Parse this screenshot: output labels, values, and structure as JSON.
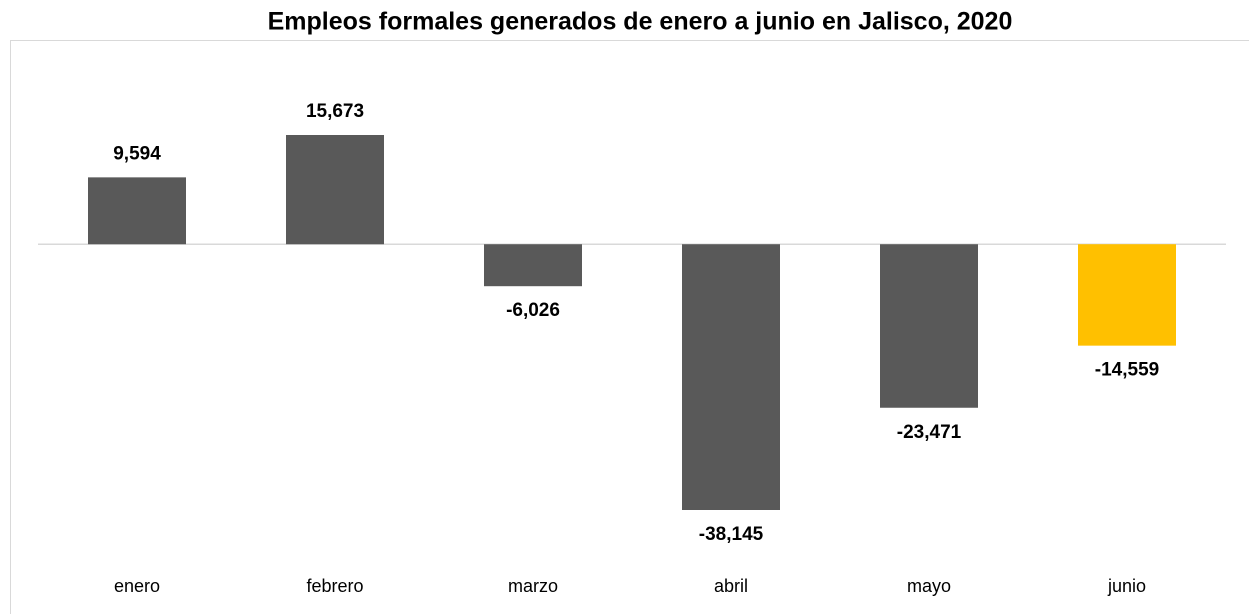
{
  "chart_data": {
    "type": "bar",
    "title": "Empleos formales generados de enero a junio en Jalisco, 2020",
    "categories": [
      "enero",
      "febrero",
      "marzo",
      "abril",
      "mayo",
      "junio"
    ],
    "values": [
      9594,
      15673,
      -6026,
      -38145,
      -23471,
      -14559
    ],
    "value_labels": [
      "9,594",
      "15,673",
      "-6,026",
      "-38,145",
      "-23,471",
      "-14,559"
    ],
    "colors": [
      "#595959",
      "#595959",
      "#595959",
      "#595959",
      "#595959",
      "#ffc000"
    ]
  }
}
